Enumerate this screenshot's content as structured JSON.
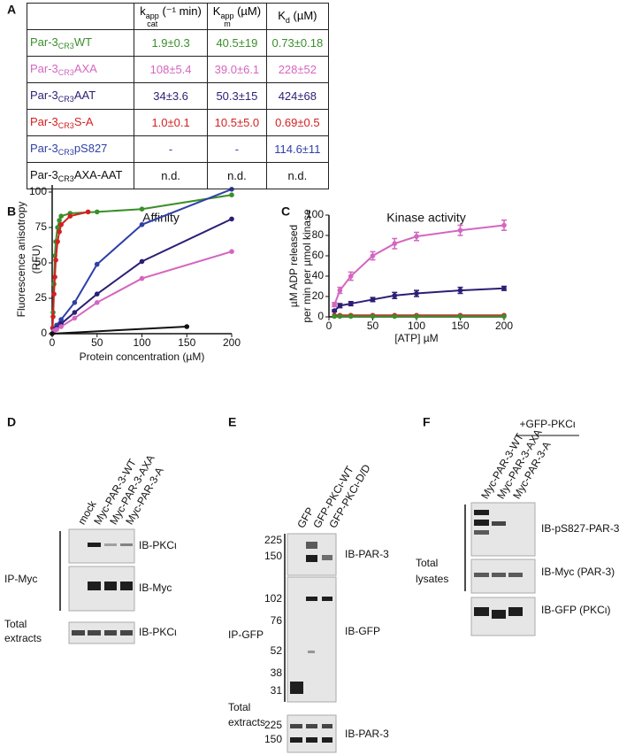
{
  "panels": [
    "A",
    "B",
    "C",
    "D",
    "E",
    "F"
  ],
  "table": {
    "header": [
      {
        "main": "k",
        "sup": "app",
        "sub": "cat",
        "unit": " (⁻¹ min)"
      },
      {
        "main": "K",
        "sup": "app",
        "sub": "m",
        "unit": " (µM)"
      },
      {
        "main": "K",
        "sub": "d",
        "unit": " (µM)"
      }
    ],
    "rows": [
      {
        "label": {
          "prefix": "Par-3",
          "sub": "CR3",
          "suffix": "WT"
        },
        "color": "#3a8f2a",
        "cells": [
          "1.9±0.3",
          "40.5±19",
          "0.73±0.18"
        ]
      },
      {
        "label": {
          "prefix": "Par-3",
          "sub": "CR3",
          "suffix": "AXA"
        },
        "color": "#d466bf",
        "cells": [
          "108±5.4",
          "39.0±6.1",
          "228±52"
        ]
      },
      {
        "label": {
          "prefix": "Par-3",
          "sub": "CR3",
          "suffix": "AAT"
        },
        "color": "#2b1f75",
        "cells": [
          "34±3.6",
          "50.3±15",
          "424±68"
        ]
      },
      {
        "label": {
          "prefix": "Par-3",
          "sub": "CR3",
          "suffix": "S-A"
        },
        "color": "#d42020",
        "cells": [
          "1.0±0.1",
          "10.5±5.0",
          "0.69±0.5"
        ]
      },
      {
        "label": {
          "prefix": "Par-3",
          "sub": "CR3",
          "suffix": "pS827"
        },
        "color": "#2e3fa8",
        "cells": [
          "-",
          "-",
          "114.6±11"
        ]
      },
      {
        "label": {
          "prefix": "Par-3",
          "sub": "CR3",
          "suffix": "AXA-AAT"
        },
        "color": "#111111",
        "cells": [
          "n.d.",
          "n.d.",
          "n.d."
        ]
      }
    ]
  },
  "chart_data": [
    {
      "type": "scatter",
      "title": "Affinity",
      "xlabel": "Protein concentration (µM)",
      "ylabel": [
        "Fluorescence anisotropy",
        "(RFU)"
      ],
      "xlim": [
        0,
        200
      ],
      "ylim": [
        0,
        105
      ],
      "xticks": [
        0,
        50,
        100,
        150,
        200
      ],
      "yticks": [
        0,
        25,
        50,
        75,
        100
      ],
      "series": [
        {
          "color": "#3a8f2a",
          "x": [
            1,
            2,
            3,
            4,
            6,
            8,
            10,
            20,
            50,
            100,
            200
          ],
          "values": [
            15,
            35,
            55,
            65,
            75,
            80,
            83,
            85,
            86,
            88,
            98
          ]
        },
        {
          "color": "#d42020",
          "x": [
            0.5,
            1,
            2,
            3,
            4,
            6,
            8,
            10,
            20,
            40
          ],
          "values": [
            4,
            12,
            28,
            40,
            52,
            65,
            72,
            77,
            83,
            86
          ]
        },
        {
          "color": "#2e3fa8",
          "x": [
            2,
            5,
            10,
            25,
            50,
            100,
            200
          ],
          "values": [
            3,
            6,
            10,
            22,
            49,
            77,
            102
          ]
        },
        {
          "color": "#2b1f75",
          "x": [
            2,
            5,
            10,
            25,
            50,
            100,
            200
          ],
          "values": [
            2,
            4,
            7,
            15,
            28,
            51,
            81
          ]
        },
        {
          "color": "#d466bf",
          "x": [
            2,
            5,
            10,
            25,
            50,
            100,
            200
          ],
          "values": [
            2,
            3,
            5,
            11,
            22,
            39,
            58
          ]
        },
        {
          "color": "#111111",
          "x": [
            0,
            150
          ],
          "values": [
            0,
            5
          ]
        }
      ]
    },
    {
      "type": "scatter",
      "title": "Kinase activity",
      "xlabel": "[ATP] µM",
      "ylabel": [
        "µM ADP released",
        "per min per µmol kinase"
      ],
      "xlim": [
        0,
        200
      ],
      "ylim": [
        0,
        100
      ],
      "xticks": [
        0,
        50,
        100,
        150,
        200
      ],
      "yticks": [
        0,
        20,
        40,
        60,
        80,
        100
      ],
      "series": [
        {
          "color": "#d466bf",
          "x": [
            6.25,
            12.5,
            25,
            50,
            75,
            100,
            150,
            200
          ],
          "values": [
            12,
            26,
            40,
            60,
            72,
            79,
            85,
            90
          ],
          "errors": [
            2,
            3,
            4,
            4,
            5,
            4,
            5,
            5
          ]
        },
        {
          "color": "#2b1f75",
          "x": [
            6.25,
            12.5,
            25,
            50,
            75,
            100,
            150,
            200
          ],
          "values": [
            6,
            11,
            13,
            17,
            21,
            23,
            26,
            28
          ],
          "errors": [
            1,
            2,
            2,
            2,
            3,
            3,
            3,
            2
          ]
        },
        {
          "color": "#d42020",
          "x": [
            6.25,
            12.5,
            25,
            50,
            75,
            100,
            150,
            200
          ],
          "values": [
            1.5,
            1.5,
            1.5,
            1.5,
            1.5,
            1.5,
            1.5,
            1.5
          ]
        },
        {
          "color": "#3a8f2a",
          "x": [
            6.25,
            12.5,
            25,
            50,
            75,
            100,
            150,
            200
          ],
          "values": [
            0.5,
            0.5,
            0.5,
            0.5,
            0.5,
            0.5,
            0.5,
            0.5
          ]
        }
      ]
    }
  ],
  "blots": {
    "D": {
      "lanes": [
        "mock",
        "Myc-PAR-3-WT",
        "Myc-PAR-3-AXA",
        "Myc-PAR-3-A"
      ],
      "ip": "IP-Myc",
      "ib": [
        "IB-PKCι",
        "IB-Myc"
      ],
      "total": [
        "Total",
        "extracts"
      ],
      "total_ib": "IB-PKCι"
    },
    "E": {
      "lanes": [
        "GFP",
        "GFP-PKCι-WT",
        "GFP-PKCι-D/D"
      ],
      "markers": [
        "225",
        "150",
        "102",
        "76",
        "52",
        "38",
        "31"
      ],
      "ip": "IP-GFP",
      "ib": [
        "IB-PAR-3",
        "IB-GFP"
      ],
      "total": [
        "Total",
        "extracts"
      ],
      "total_markers": [
        "225",
        "150"
      ],
      "total_ib": "IB-PAR-3"
    },
    "F": {
      "treatment": "+GFP-PKCι",
      "lanes": [
        "Myc-PAR-3-WT",
        "Myc-PAR-3-AXA",
        "Myc-PAR-3-A"
      ],
      "group": [
        "Total",
        "lysates"
      ],
      "ib": [
        "IB-pS827-PAR-3",
        "IB-Myc (PAR-3)",
        "IB-GFP (PKCι)"
      ]
    }
  }
}
